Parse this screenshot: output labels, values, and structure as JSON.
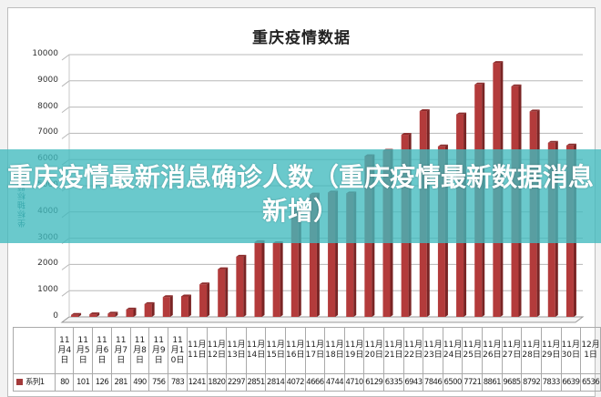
{
  "chart_data": {
    "type": "bar",
    "title": "重庆疫情数据",
    "xlabel": "",
    "ylabel": "坐标轴标题",
    "ylim": [
      0,
      10000
    ],
    "yticks": [
      0,
      1000,
      2000,
      3000,
      4000,
      5000,
      6000,
      7000,
      8000,
      9000,
      10000
    ],
    "grid": true,
    "legend_position": "data table",
    "categories": [
      "11月4日",
      "11月5日",
      "11月6日",
      "11月7日",
      "11月8日",
      "11月9日",
      "11月10日",
      "11月11日",
      "11月12日",
      "11月13日",
      "11月14日",
      "11月15日",
      "11月16日",
      "11月17日",
      "11月18日",
      "11月19日",
      "11月20日",
      "11月21日",
      "11月22日",
      "11月23日",
      "11月24日",
      "11月25日",
      "11月26日",
      "11月27日",
      "11月28日",
      "11月29日",
      "11月30日",
      "12月1日"
    ],
    "series": [
      {
        "name": "系列1",
        "color": "#b33b3b",
        "values": [
          80,
          101,
          126,
          281,
          490,
          756,
          783,
          1241,
          1820,
          2297,
          2851,
          2814,
          4072,
          4666,
          4744,
          4710,
          6129,
          6335,
          6943,
          7846,
          6500,
          7721,
          8861,
          9685,
          8792,
          7833,
          6639,
          6536
        ]
      }
    ]
  },
  "chart": {
    "title": "重庆疫情数据",
    "y_axis_title": "坐标轴标题",
    "y_ticks": [
      "0",
      "1000",
      "2000",
      "3000",
      "4000",
      "5000",
      "6000",
      "7000",
      "8000",
      "9000",
      "10000"
    ],
    "legend_label": "系列1"
  },
  "table": {
    "headers": [
      "11月4日",
      "11月5日",
      "11月6日",
      "11月7日",
      "11月8日",
      "11月9日",
      "11月10日",
      "11月11日",
      "11月12日",
      "11月13日",
      "11月14日",
      "11月15日",
      "11月16日",
      "11月17日",
      "11月18日",
      "11月19日",
      "11月20日",
      "11月21日",
      "11月22日",
      "11月23日",
      "11月24日",
      "11月25日",
      "11月26日",
      "11月27日",
      "11月28日",
      "11月29日",
      "11月30日",
      "12月1日"
    ],
    "values": [
      "80",
      "101",
      "126",
      "281",
      "490",
      "756",
      "783",
      "1241",
      "1820",
      "2297",
      "2851",
      "2814",
      "4072",
      "4666",
      "4744",
      "4710",
      "6129",
      "6335",
      "6943",
      "7846",
      "6500",
      "7721",
      "8861",
      "9685",
      "8792",
      "7833",
      "6639",
      "6536"
    ]
  },
  "overlay": {
    "headline": "重庆疫情最新消息确诊人数（重庆疫情最新数据消息新增）"
  },
  "colors": {
    "bar": "#b33b3b",
    "bar_side": "#7a2424",
    "banner": "#40babe"
  }
}
